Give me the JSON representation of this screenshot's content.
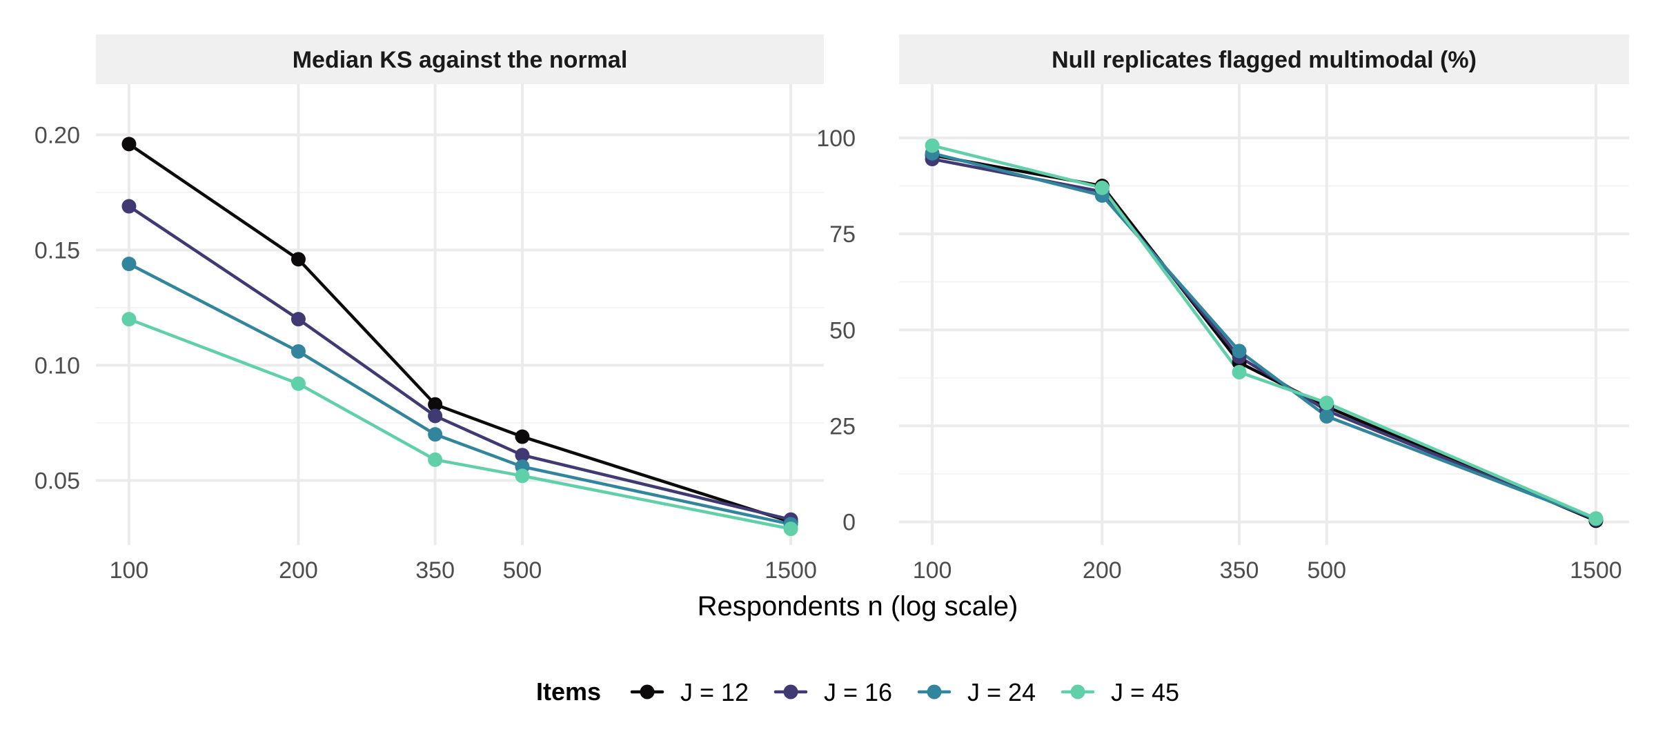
{
  "chart_data": {
    "type": "line",
    "xlabel": "Respondents n (log scale)",
    "x_scale": "log",
    "x": [
      100,
      200,
      350,
      500,
      1500
    ],
    "x_tick_labels": [
      "100",
      "200",
      "350",
      "500",
      "1500"
    ],
    "legend": {
      "title": "Items",
      "position": "bottom",
      "entries": [
        "J = 12",
        "J = 16",
        "J = 24",
        "J = 45"
      ]
    },
    "colors": {
      "J = 12": "#0d0a0b",
      "J = 16": "#3f3a73",
      "J = 24": "#31859c",
      "J = 45": "#5fd0a8"
    },
    "grid": true,
    "panels": [
      {
        "title": "Median KS against the normal",
        "ylim": [
          0.022,
          0.222
        ],
        "y_ticks": [
          0.05,
          0.1,
          0.15,
          0.2
        ],
        "y_tick_labels": [
          "0.05",
          "0.10",
          "0.15",
          "0.20"
        ],
        "series": [
          {
            "name": "J = 12",
            "values": [
              0.196,
              0.146,
              0.083,
              0.069,
              0.032
            ]
          },
          {
            "name": "J = 16",
            "values": [
              0.169,
              0.12,
              0.078,
              0.061,
              0.033
            ]
          },
          {
            "name": "J = 24",
            "values": [
              0.144,
              0.106,
              0.07,
              0.056,
              0.031
            ]
          },
          {
            "name": "J = 45",
            "values": [
              0.12,
              0.092,
              0.059,
              0.052,
              0.029
            ]
          }
        ]
      },
      {
        "title": "Null replicates flagged multimodal (%)",
        "ylim": [
          -6,
          114
        ],
        "y_ticks": [
          0,
          25,
          50,
          75,
          100
        ],
        "y_tick_labels": [
          "0",
          "25",
          "50",
          "75",
          "100"
        ],
        "series": [
          {
            "name": "J = 12",
            "values": [
              95.5,
              87.5,
              41.5,
              30.0,
              0.3
            ]
          },
          {
            "name": "J = 16",
            "values": [
              94.5,
              86.0,
              43.0,
              29.0,
              0.6
            ]
          },
          {
            "name": "J = 24",
            "values": [
              96.0,
              85.0,
              44.5,
              27.5,
              0.8
            ]
          },
          {
            "name": "J = 45",
            "values": [
              98.0,
              87.0,
              39.0,
              31.0,
              0.9
            ]
          }
        ]
      }
    ]
  }
}
